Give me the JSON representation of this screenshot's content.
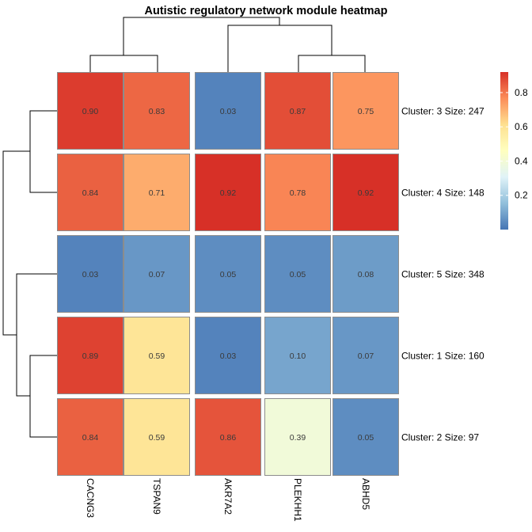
{
  "chart_data": {
    "type": "heatmap",
    "title": "Autistic regulatory network module heatmap",
    "columns": [
      "CACNG3",
      "TSPAN9",
      "AKR7A2",
      "PLEKHH1",
      "ABHD5"
    ],
    "rows": [
      {
        "label": "Cluster: 3 Size: 247",
        "values": [
          0.9,
          0.83,
          0.03,
          0.87,
          0.75
        ],
        "display": [
          "0.90",
          "0.83",
          "0.03",
          "0.87",
          "0.75"
        ]
      },
      {
        "label": "Cluster: 4 Size: 148",
        "values": [
          0.84,
          0.71,
          0.92,
          0.78,
          0.92
        ],
        "display": [
          "0.84",
          "0.71",
          "0.92",
          "0.78",
          "0.92"
        ]
      },
      {
        "label": "Cluster: 5 Size: 348",
        "values": [
          0.03,
          0.07,
          0.05,
          0.05,
          0.08
        ],
        "display": [
          "0.03",
          "0.07",
          "0.05",
          "0.05",
          "0.08"
        ]
      },
      {
        "label": "Cluster: 1 Size: 160",
        "values": [
          0.89,
          0.59,
          0.03,
          0.1,
          0.07
        ],
        "display": [
          "0.89",
          "0.59",
          "0.03",
          "0.10",
          "0.07"
        ]
      },
      {
        "label": "Cluster: 2 Size: 97",
        "values": [
          0.84,
          0.59,
          0.86,
          0.39,
          0.05
        ],
        "display": [
          "0.84",
          "0.59",
          "0.86",
          "0.39",
          "0.05"
        ]
      }
    ],
    "row_gaps_after": [
      0,
      1,
      2,
      3
    ],
    "col_gaps_after": [
      1,
      2
    ],
    "color_scale": {
      "min": 0.0,
      "max": 0.92,
      "colors": [
        "#4575b4",
        "#91bfdb",
        "#e0f3f8",
        "#ffffbf",
        "#fee090",
        "#fc8d59",
        "#d73027"
      ],
      "legend_ticks": [
        {
          "value": 0.2,
          "label": "0.2"
        },
        {
          "value": 0.4,
          "label": "0.4"
        },
        {
          "value": 0.6,
          "label": "0.6"
        },
        {
          "value": 0.8,
          "label": "0.8"
        }
      ]
    },
    "legend_position": "right",
    "col_dendrogram": true,
    "row_dendrogram": true
  }
}
